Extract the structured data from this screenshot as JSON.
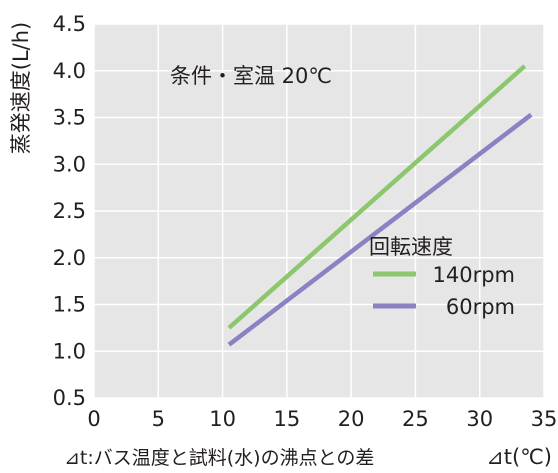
{
  "chart_data": {
    "type": "line",
    "title": "",
    "ylabel": "蒸発速度(L/h)",
    "xlabel": "⊿t:バス温度と試料(水)の沸点との差",
    "x_unit_label": "⊿t(℃)",
    "annotation": "条件・室温 20℃",
    "legend_title": "回転速度",
    "xlim": [
      0,
      35
    ],
    "ylim": [
      0.5,
      4.5
    ],
    "x_ticks": [
      0,
      5,
      10,
      15,
      20,
      25,
      30,
      35
    ],
    "y_ticks": [
      0.5,
      1.0,
      1.5,
      2.0,
      2.5,
      3.0,
      3.5,
      4.0,
      4.5
    ],
    "x_tick_labels": [
      "0",
      "5",
      "10",
      "15",
      "20",
      "25",
      "30",
      "35"
    ],
    "y_tick_labels": [
      "0.5",
      "1.0",
      "1.5",
      "2.0",
      "2.5",
      "3.0",
      "3.5",
      "4.0",
      "4.5"
    ],
    "grid": true,
    "legend_position": "center-right",
    "series": [
      {
        "name": "140rpm",
        "color": "#8cc66d",
        "x": [
          10.5,
          33.5
        ],
        "y": [
          1.25,
          4.05
        ]
      },
      {
        "name": "60rpm",
        "color": "#8a82c3",
        "x": [
          10.5,
          34.0
        ],
        "y": [
          1.07,
          3.53
        ]
      }
    ]
  }
}
